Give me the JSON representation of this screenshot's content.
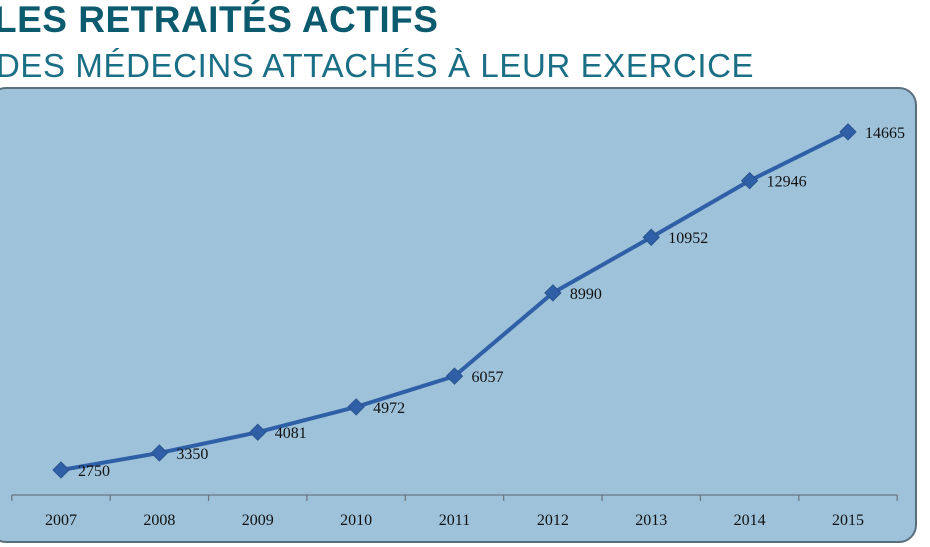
{
  "header": {
    "title": "LES RETRAITÉS ACTIFS",
    "subtitle": "DES MÉDECINS ATTACHÉS À LEUR EXERCICE"
  },
  "colors": {
    "title": "#0b5a6e",
    "subtitle": "#1a6f86",
    "plot_background": "#9ec2da",
    "series_line": "#2f5fa6"
  },
  "chart_data": {
    "type": "line",
    "title": "",
    "xlabel": "",
    "ylabel": "",
    "categories": [
      "2007",
      "2008",
      "2009",
      "2010",
      "2011",
      "2012",
      "2013",
      "2014",
      "2015"
    ],
    "series": [
      {
        "values": [
          2750,
          3350,
          4081,
          4972,
          6057,
          8990,
          10952,
          12946,
          14665
        ],
        "marker": "diamond",
        "data_labels": [
          "2750",
          "3350",
          "4081",
          "4972",
          "6057",
          "8990",
          "10952",
          "12946",
          "14665"
        ]
      }
    ],
    "ylim": [
      0,
      16000
    ],
    "y_axis_visible": false,
    "grid": false,
    "legend": "none"
  }
}
